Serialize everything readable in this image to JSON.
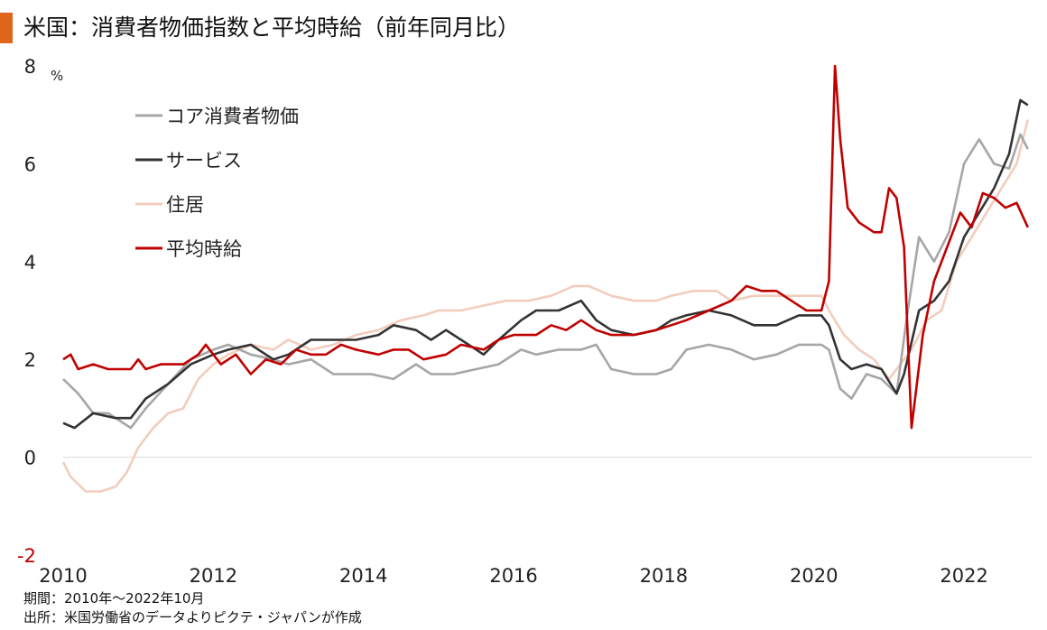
{
  "title": "米国：消費者物価指数と平均時給（前年同月比）",
  "accent_color": "#e0661b",
  "notes": {
    "period": "期間：2010年～2022年10月",
    "source": "出所：米国労働省のデータよりピクテ・ジャパンが作成"
  },
  "chart_data": {
    "type": "line",
    "title": "米国：消費者物価指数と平均時給（前年同月比）",
    "xlabel": "",
    "ylabel": "%",
    "x_ticks": [
      "2010",
      "2012",
      "2014",
      "2016",
      "2018",
      "2020",
      "2022"
    ],
    "y_ticks": [
      8,
      6,
      4,
      2,
      0,
      -2
    ],
    "ylim": [
      -2,
      8
    ],
    "xlim": [
      2010.0,
      2022.9
    ],
    "grid": "zero-line only",
    "legend_position": "top-left",
    "series": [
      {
        "name": "コア消費者物価",
        "color": "#a6a6a6",
        "points": [
          [
            2010.0,
            1.6
          ],
          [
            2010.2,
            1.3
          ],
          [
            2010.4,
            0.9
          ],
          [
            2010.6,
            0.9
          ],
          [
            2010.9,
            0.6
          ],
          [
            2011.1,
            1.0
          ],
          [
            2011.4,
            1.5
          ],
          [
            2011.7,
            2.0
          ],
          [
            2012.0,
            2.2
          ],
          [
            2012.2,
            2.3
          ],
          [
            2012.5,
            2.1
          ],
          [
            2012.8,
            2.0
          ],
          [
            2013.0,
            1.9
          ],
          [
            2013.3,
            2.0
          ],
          [
            2013.6,
            1.7
          ],
          [
            2013.9,
            1.7
          ],
          [
            2014.1,
            1.7
          ],
          [
            2014.4,
            1.6
          ],
          [
            2014.7,
            1.9
          ],
          [
            2014.9,
            1.7
          ],
          [
            2015.2,
            1.7
          ],
          [
            2015.5,
            1.8
          ],
          [
            2015.8,
            1.9
          ],
          [
            2016.1,
            2.2
          ],
          [
            2016.3,
            2.1
          ],
          [
            2016.6,
            2.2
          ],
          [
            2016.9,
            2.2
          ],
          [
            2017.1,
            2.3
          ],
          [
            2017.3,
            1.8
          ],
          [
            2017.6,
            1.7
          ],
          [
            2017.9,
            1.7
          ],
          [
            2018.1,
            1.8
          ],
          [
            2018.3,
            2.2
          ],
          [
            2018.6,
            2.3
          ],
          [
            2018.9,
            2.2
          ],
          [
            2019.2,
            2.0
          ],
          [
            2019.5,
            2.1
          ],
          [
            2019.8,
            2.3
          ],
          [
            2020.1,
            2.3
          ],
          [
            2020.2,
            2.2
          ],
          [
            2020.35,
            1.4
          ],
          [
            2020.5,
            1.2
          ],
          [
            2020.7,
            1.7
          ],
          [
            2020.9,
            1.6
          ],
          [
            2021.1,
            1.3
          ],
          [
            2021.25,
            3.0
          ],
          [
            2021.4,
            4.5
          ],
          [
            2021.6,
            4.0
          ],
          [
            2021.8,
            4.6
          ],
          [
            2022.0,
            6.0
          ],
          [
            2022.2,
            6.5
          ],
          [
            2022.4,
            6.0
          ],
          [
            2022.6,
            5.9
          ],
          [
            2022.75,
            6.6
          ],
          [
            2022.85,
            6.3
          ]
        ]
      },
      {
        "name": "サービス",
        "color": "#333333",
        "points": [
          [
            2010.0,
            0.7
          ],
          [
            2010.15,
            0.6
          ],
          [
            2010.4,
            0.9
          ],
          [
            2010.7,
            0.8
          ],
          [
            2010.9,
            0.8
          ],
          [
            2011.1,
            1.2
          ],
          [
            2011.4,
            1.5
          ],
          [
            2011.7,
            1.9
          ],
          [
            2012.0,
            2.1
          ],
          [
            2012.2,
            2.2
          ],
          [
            2012.5,
            2.3
          ],
          [
            2012.8,
            2.0
          ],
          [
            2013.0,
            2.1
          ],
          [
            2013.3,
            2.4
          ],
          [
            2013.6,
            2.4
          ],
          [
            2013.9,
            2.4
          ],
          [
            2014.2,
            2.5
          ],
          [
            2014.4,
            2.7
          ],
          [
            2014.7,
            2.6
          ],
          [
            2014.9,
            2.4
          ],
          [
            2015.1,
            2.6
          ],
          [
            2015.4,
            2.3
          ],
          [
            2015.6,
            2.1
          ],
          [
            2015.8,
            2.4
          ],
          [
            2016.1,
            2.8
          ],
          [
            2016.3,
            3.0
          ],
          [
            2016.6,
            3.0
          ],
          [
            2016.9,
            3.2
          ],
          [
            2017.1,
            2.8
          ],
          [
            2017.3,
            2.6
          ],
          [
            2017.6,
            2.5
          ],
          [
            2017.9,
            2.6
          ],
          [
            2018.1,
            2.8
          ],
          [
            2018.3,
            2.9
          ],
          [
            2018.6,
            3.0
          ],
          [
            2018.9,
            2.9
          ],
          [
            2019.2,
            2.7
          ],
          [
            2019.5,
            2.7
          ],
          [
            2019.8,
            2.9
          ],
          [
            2020.1,
            2.9
          ],
          [
            2020.2,
            2.7
          ],
          [
            2020.35,
            2.0
          ],
          [
            2020.5,
            1.8
          ],
          [
            2020.7,
            1.9
          ],
          [
            2020.9,
            1.8
          ],
          [
            2021.1,
            1.3
          ],
          [
            2021.2,
            1.7
          ],
          [
            2021.4,
            3.0
          ],
          [
            2021.6,
            3.2
          ],
          [
            2021.8,
            3.6
          ],
          [
            2022.0,
            4.5
          ],
          [
            2022.2,
            5.0
          ],
          [
            2022.4,
            5.5
          ],
          [
            2022.6,
            6.2
          ],
          [
            2022.75,
            7.3
          ],
          [
            2022.85,
            7.2
          ]
        ]
      },
      {
        "name": "住居",
        "color": "#f2cdbd",
        "points": [
          [
            2010.0,
            -0.1
          ],
          [
            2010.1,
            -0.4
          ],
          [
            2010.3,
            -0.7
          ],
          [
            2010.5,
            -0.7
          ],
          [
            2010.7,
            -0.6
          ],
          [
            2010.85,
            -0.3
          ],
          [
            2011.0,
            0.2
          ],
          [
            2011.2,
            0.6
          ],
          [
            2011.4,
            0.9
          ],
          [
            2011.6,
            1.0
          ],
          [
            2011.8,
            1.6
          ],
          [
            2012.0,
            1.9
          ],
          [
            2012.2,
            2.1
          ],
          [
            2012.5,
            2.3
          ],
          [
            2012.8,
            2.2
          ],
          [
            2013.0,
            2.4
          ],
          [
            2013.3,
            2.2
          ],
          [
            2013.6,
            2.3
          ],
          [
            2013.9,
            2.5
          ],
          [
            2014.2,
            2.6
          ],
          [
            2014.5,
            2.8
          ],
          [
            2014.8,
            2.9
          ],
          [
            2015.0,
            3.0
          ],
          [
            2015.3,
            3.0
          ],
          [
            2015.6,
            3.1
          ],
          [
            2015.9,
            3.2
          ],
          [
            2016.2,
            3.2
          ],
          [
            2016.5,
            3.3
          ],
          [
            2016.8,
            3.5
          ],
          [
            2017.0,
            3.5
          ],
          [
            2017.3,
            3.3
          ],
          [
            2017.6,
            3.2
          ],
          [
            2017.9,
            3.2
          ],
          [
            2018.1,
            3.3
          ],
          [
            2018.4,
            3.4
          ],
          [
            2018.7,
            3.4
          ],
          [
            2018.9,
            3.2
          ],
          [
            2019.2,
            3.3
          ],
          [
            2019.5,
            3.3
          ],
          [
            2019.8,
            3.3
          ],
          [
            2020.1,
            3.3
          ],
          [
            2020.2,
            3.0
          ],
          [
            2020.4,
            2.5
          ],
          [
            2020.6,
            2.2
          ],
          [
            2020.8,
            2.0
          ],
          [
            2021.0,
            1.6
          ],
          [
            2021.1,
            1.8
          ],
          [
            2021.3,
            2.2
          ],
          [
            2021.5,
            2.8
          ],
          [
            2021.7,
            3.0
          ],
          [
            2021.9,
            4.0
          ],
          [
            2022.1,
            4.5
          ],
          [
            2022.3,
            5.0
          ],
          [
            2022.5,
            5.5
          ],
          [
            2022.7,
            6.0
          ],
          [
            2022.85,
            6.9
          ]
        ]
      },
      {
        "name": "平均時給",
        "color": "#c00000",
        "points": [
          [
            2010.0,
            2.0
          ],
          [
            2010.1,
            2.1
          ],
          [
            2010.2,
            1.8
          ],
          [
            2010.4,
            1.9
          ],
          [
            2010.6,
            1.8
          ],
          [
            2010.9,
            1.8
          ],
          [
            2011.0,
            2.0
          ],
          [
            2011.1,
            1.8
          ],
          [
            2011.3,
            1.9
          ],
          [
            2011.6,
            1.9
          ],
          [
            2011.8,
            2.1
          ],
          [
            2011.9,
            2.3
          ],
          [
            2012.1,
            1.9
          ],
          [
            2012.3,
            2.1
          ],
          [
            2012.5,
            1.7
          ],
          [
            2012.7,
            2.0
          ],
          [
            2012.9,
            1.9
          ],
          [
            2013.1,
            2.2
          ],
          [
            2013.3,
            2.1
          ],
          [
            2013.5,
            2.1
          ],
          [
            2013.7,
            2.3
          ],
          [
            2013.9,
            2.2
          ],
          [
            2014.2,
            2.1
          ],
          [
            2014.4,
            2.2
          ],
          [
            2014.6,
            2.2
          ],
          [
            2014.8,
            2.0
          ],
          [
            2015.1,
            2.1
          ],
          [
            2015.3,
            2.3
          ],
          [
            2015.6,
            2.2
          ],
          [
            2015.8,
            2.4
          ],
          [
            2016.0,
            2.5
          ],
          [
            2016.3,
            2.5
          ],
          [
            2016.5,
            2.7
          ],
          [
            2016.7,
            2.6
          ],
          [
            2016.9,
            2.8
          ],
          [
            2017.1,
            2.6
          ],
          [
            2017.3,
            2.5
          ],
          [
            2017.6,
            2.5
          ],
          [
            2017.9,
            2.6
          ],
          [
            2018.1,
            2.7
          ],
          [
            2018.3,
            2.8
          ],
          [
            2018.6,
            3.0
          ],
          [
            2018.9,
            3.2
          ],
          [
            2019.1,
            3.5
          ],
          [
            2019.3,
            3.4
          ],
          [
            2019.5,
            3.4
          ],
          [
            2019.7,
            3.2
          ],
          [
            2019.9,
            3.0
          ],
          [
            2020.1,
            3.0
          ],
          [
            2020.2,
            3.6
          ],
          [
            2020.28,
            8.0
          ],
          [
            2020.35,
            6.5
          ],
          [
            2020.45,
            5.1
          ],
          [
            2020.6,
            4.8
          ],
          [
            2020.8,
            4.6
          ],
          [
            2020.9,
            4.6
          ],
          [
            2021.0,
            5.5
          ],
          [
            2021.1,
            5.3
          ],
          [
            2021.2,
            4.3
          ],
          [
            2021.3,
            0.6
          ],
          [
            2021.45,
            2.5
          ],
          [
            2021.6,
            3.6
          ],
          [
            2021.8,
            4.4
          ],
          [
            2021.95,
            5.0
          ],
          [
            2022.1,
            4.7
          ],
          [
            2022.25,
            5.4
          ],
          [
            2022.4,
            5.3
          ],
          [
            2022.55,
            5.1
          ],
          [
            2022.7,
            5.2
          ],
          [
            2022.85,
            4.7
          ]
        ]
      }
    ]
  }
}
